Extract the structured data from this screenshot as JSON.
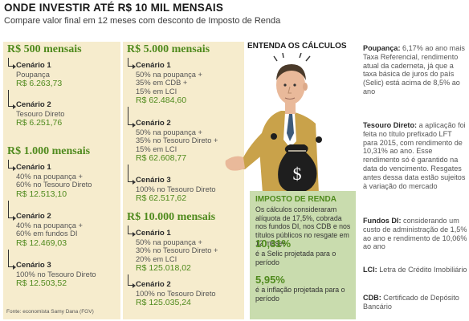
{
  "header": {
    "title": "ONDE INVESTIR ATÉ R$ 10 MIL MENSAIS",
    "subtitle": "Compare valor final em 12 meses com desconto de Imposto de Renda"
  },
  "sections": {
    "s500": {
      "heading": "R$ 500 mensais",
      "c1": {
        "name": "Cenário 1",
        "desc": "Poupança",
        "value": "R$ 6.263,73"
      },
      "c2": {
        "name": "Cenário 2",
        "desc": "Tesouro Direto",
        "value": "R$ 6.251,76"
      }
    },
    "s1000": {
      "heading": "R$ 1.000 mensais",
      "c1": {
        "name": "Cenário 1",
        "d1": "40% na poupança +",
        "d2": "60% no Tesouro Direto",
        "value": "R$ 12.513,10"
      },
      "c2": {
        "name": "Cenário 2",
        "d1": "40% na poupança +",
        "d2": "60% em fundos DI",
        "value": "R$ 12.469,03"
      },
      "c3": {
        "name": "Cenário 3",
        "d1": "100% no Tesouro Direto",
        "value": "R$ 12.503,52"
      }
    },
    "s5000": {
      "heading": "R$ 5.000 mensais",
      "c1": {
        "name": "Cenário 1",
        "d1": "50% na poupança +",
        "d2": "35% em CDB +",
        "d3": "15% em LCI",
        "value": "R$ 62.484,60"
      },
      "c2": {
        "name": "Cenário 2",
        "d1": "50% na poupança +",
        "d2": "35% no Tesouro Direto +",
        "d3": "15% em LCI",
        "value": "R$ 62.608,77"
      },
      "c3": {
        "name": "Cenário 3",
        "d1": "100% no Tesouro Direto",
        "value": "R$ 62.517,62"
      }
    },
    "s10000": {
      "heading": "R$ 10.000 mensais",
      "c1": {
        "name": "Cenário 1",
        "d1": "50% na poupança +",
        "d2": "30% no Tesouro Direto +",
        "d3": "20% em LCI",
        "value": "R$ 125.018,02"
      },
      "c2": {
        "name": "Cenário 2",
        "d1": "100% no Tesouro Direto",
        "value": "R$ 125.035,24"
      }
    }
  },
  "source": "Fonte: economista Samy Dana (FGV)",
  "illustration": {
    "caption": "ENTENDA OS CÁLCULOS",
    "bag_symbol": "$"
  },
  "ir_box": {
    "title": "IMPOSTO DE RENDA",
    "text": "Os cálculos consideraram alíquota de 17,5%, cobrada nos fundos DI, nos CDB e nos títulos públicos no resgate em 12 meses",
    "selic_pct": "10,31%",
    "selic_text": "é a Selic projetada para o período",
    "inflation_pct": "5,95%",
    "inflation_text": "é a inflação projetada para o período"
  },
  "notes": {
    "poupanca": {
      "term": "Poupança:",
      "text": "6,17% ao ano mais Taxa Referencial, rendimento atual da caderneta, já que a taxa básica de juros do país (Selic) está acima de 8,5% ao ano"
    },
    "tesouro": {
      "term": "Tesouro Direto:",
      "text": "a aplicação foi feita no título prefixado LFT para 2015, com rendimento de 10,31% ao ano. Esse rendimento só é garantido na data do vencimento. Resgates antes dessa data estão sujeitos à variação do mercado"
    },
    "fundos": {
      "term": "Fundos DI:",
      "text": "considerando um custo de administração de 1,5% ao ano e rendimento de 10,06% ao ano"
    },
    "lci": {
      "term": "LCI:",
      "text": "Letra de Crédito Imobiliário"
    },
    "cdb": {
      "term": "CDB:",
      "text": "Certificado de Depósito Bancário"
    }
  }
}
